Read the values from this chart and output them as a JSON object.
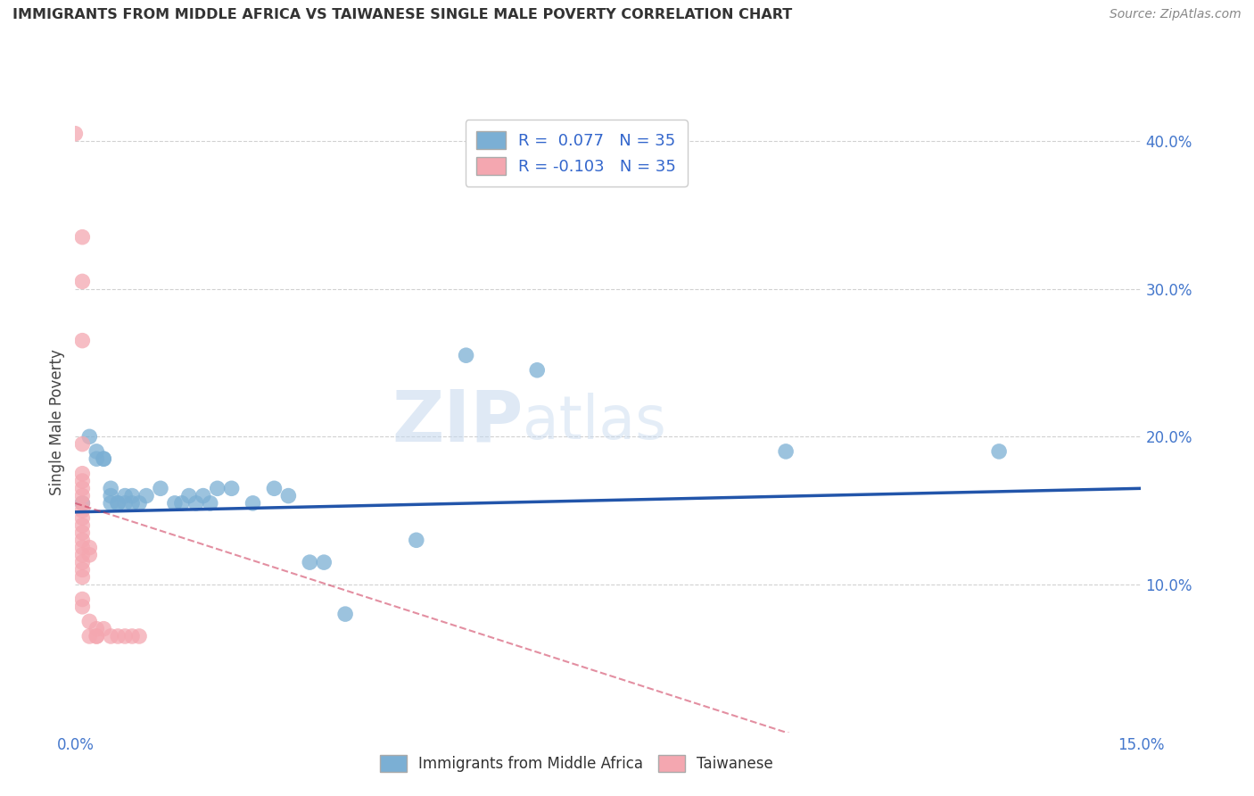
{
  "title": "IMMIGRANTS FROM MIDDLE AFRICA VS TAIWANESE SINGLE MALE POVERTY CORRELATION CHART",
  "source": "Source: ZipAtlas.com",
  "ylabel": "Single Male Poverty",
  "xlim": [
    0.0,
    0.15
  ],
  "ylim": [
    0.0,
    0.42
  ],
  "y_ticks": [
    0.1,
    0.2,
    0.3,
    0.4
  ],
  "y_tick_labels": [
    "10.0%",
    "20.0%",
    "30.0%",
    "40.0%"
  ],
  "x_ticks": [
    0.0,
    0.05,
    0.1,
    0.15
  ],
  "x_tick_labels": [
    "0.0%",
    "",
    "",
    "15.0%"
  ],
  "blue_color": "#7bafd4",
  "pink_color": "#f4a7b0",
  "blue_line_color": "#2255aa",
  "pink_line_color": "#cc3355",
  "watermark_zip": "ZIP",
  "watermark_atlas": "atlas",
  "blue_points": [
    [
      0.001,
      0.155
    ],
    [
      0.002,
      0.2
    ],
    [
      0.003,
      0.19
    ],
    [
      0.003,
      0.185
    ],
    [
      0.004,
      0.185
    ],
    [
      0.004,
      0.185
    ],
    [
      0.005,
      0.165
    ],
    [
      0.005,
      0.155
    ],
    [
      0.005,
      0.16
    ],
    [
      0.006,
      0.155
    ],
    [
      0.006,
      0.155
    ],
    [
      0.007,
      0.155
    ],
    [
      0.007,
      0.16
    ],
    [
      0.008,
      0.16
    ],
    [
      0.008,
      0.155
    ],
    [
      0.009,
      0.155
    ],
    [
      0.01,
      0.16
    ],
    [
      0.012,
      0.165
    ],
    [
      0.014,
      0.155
    ],
    [
      0.015,
      0.155
    ],
    [
      0.016,
      0.16
    ],
    [
      0.017,
      0.155
    ],
    [
      0.018,
      0.16
    ],
    [
      0.019,
      0.155
    ],
    [
      0.02,
      0.165
    ],
    [
      0.022,
      0.165
    ],
    [
      0.025,
      0.155
    ],
    [
      0.028,
      0.165
    ],
    [
      0.03,
      0.16
    ],
    [
      0.033,
      0.115
    ],
    [
      0.035,
      0.115
    ],
    [
      0.038,
      0.08
    ],
    [
      0.048,
      0.13
    ],
    [
      0.055,
      0.255
    ],
    [
      0.065,
      0.245
    ],
    [
      0.1,
      0.19
    ],
    [
      0.13,
      0.19
    ]
  ],
  "pink_points": [
    [
      0.0,
      0.405
    ],
    [
      0.001,
      0.335
    ],
    [
      0.001,
      0.305
    ],
    [
      0.001,
      0.265
    ],
    [
      0.001,
      0.195
    ],
    [
      0.001,
      0.175
    ],
    [
      0.001,
      0.17
    ],
    [
      0.001,
      0.165
    ],
    [
      0.001,
      0.16
    ],
    [
      0.001,
      0.155
    ],
    [
      0.001,
      0.15
    ],
    [
      0.001,
      0.145
    ],
    [
      0.001,
      0.14
    ],
    [
      0.001,
      0.135
    ],
    [
      0.001,
      0.13
    ],
    [
      0.001,
      0.125
    ],
    [
      0.001,
      0.12
    ],
    [
      0.001,
      0.115
    ],
    [
      0.001,
      0.11
    ],
    [
      0.001,
      0.105
    ],
    [
      0.001,
      0.09
    ],
    [
      0.001,
      0.085
    ],
    [
      0.002,
      0.125
    ],
    [
      0.002,
      0.12
    ],
    [
      0.002,
      0.075
    ],
    [
      0.002,
      0.065
    ],
    [
      0.003,
      0.07
    ],
    [
      0.003,
      0.065
    ],
    [
      0.003,
      0.065
    ],
    [
      0.004,
      0.07
    ],
    [
      0.005,
      0.065
    ],
    [
      0.006,
      0.065
    ],
    [
      0.007,
      0.065
    ],
    [
      0.008,
      0.065
    ],
    [
      0.009,
      0.065
    ]
  ]
}
